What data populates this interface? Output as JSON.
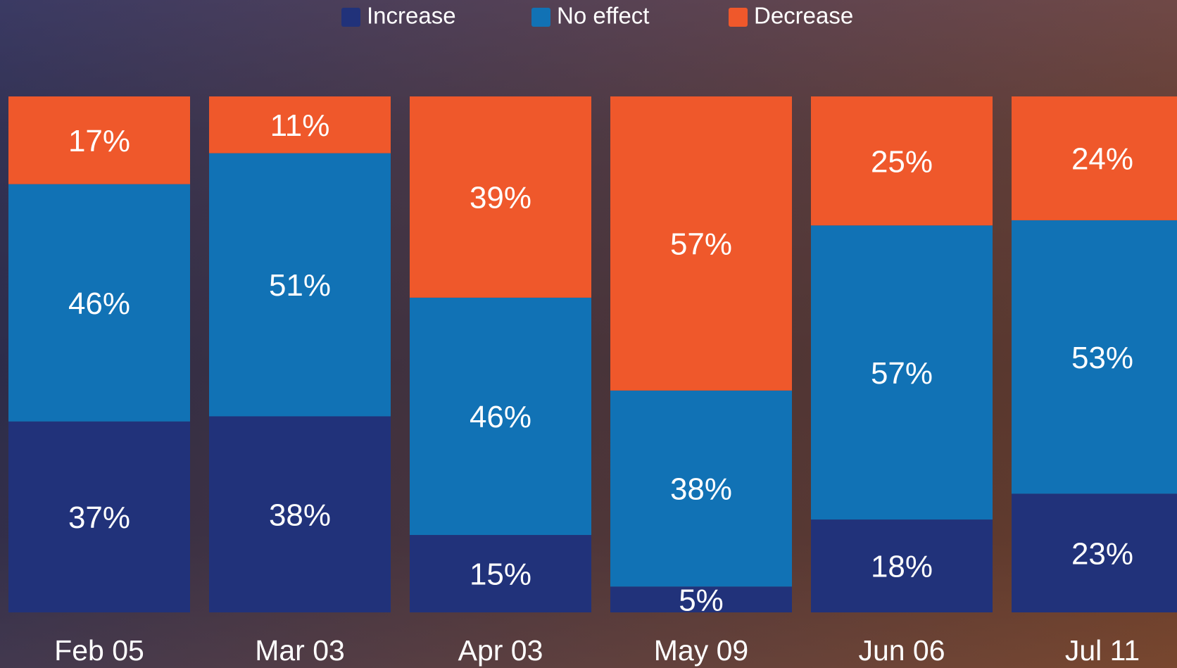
{
  "chart_data": {
    "type": "stacked_bar",
    "categories": [
      "Feb 05",
      "Mar 03",
      "Apr 03",
      "May 09",
      "Jun 06",
      "Jul 11"
    ],
    "series": [
      {
        "name": "Increase",
        "color": "#21327a",
        "values": [
          37,
          38,
          15,
          5,
          18,
          23
        ],
        "value_labels": [
          "37%",
          "38%",
          "15%",
          "5%",
          "18%",
          "23%"
        ]
      },
      {
        "name": "No effect",
        "color": "#1172b5",
        "values": [
          46,
          51,
          46,
          38,
          57,
          53
        ],
        "value_labels": [
          "46%",
          "51%",
          "46%",
          "38%",
          "57%",
          "53%"
        ]
      },
      {
        "name": "Decrease",
        "color": "#ef582b",
        "values": [
          17,
          11,
          39,
          57,
          25,
          24
        ],
        "value_labels": [
          "17%",
          "11%",
          "39%",
          "57%",
          "25%",
          "24%"
        ]
      }
    ],
    "legend": "top"
  }
}
